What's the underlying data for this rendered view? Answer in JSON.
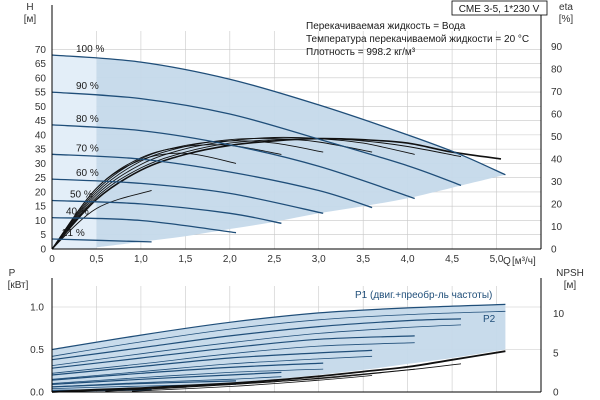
{
  "chart_data": [
    {
      "type": "line",
      "model": "CME 3-5, 1*230 V",
      "notes": [
        "Перекачиваемая жидкость = Вода",
        "Температура перекачиваемой жидкости = 20 °C",
        "Плотность = 998.2 кг/м³"
      ],
      "ylabel": "H",
      "yunit": "[м]",
      "y2label": "eta",
      "y2unit": "[%]",
      "xlabel": "Q",
      "xunit": "[м³/ч]",
      "xlim": [
        0,
        5.5
      ],
      "ylim": [
        0,
        75
      ],
      "y2lim": [
        0,
        95
      ],
      "xticks": [
        "0",
        "0,5",
        "1,0",
        "1,5",
        "2,0",
        "2,5",
        "3,0",
        "3,5",
        "4,0",
        "4,5",
        "5,0"
      ],
      "yticks": [
        "0",
        "5",
        "10",
        "15",
        "20",
        "25",
        "30",
        "35",
        "40",
        "45",
        "50",
        "55",
        "60",
        "65",
        "70"
      ],
      "y2ticks": [
        "0",
        "10",
        "20",
        "30",
        "40",
        "50",
        "60",
        "70",
        "80",
        "90"
      ],
      "colors": {
        "curve": "#1f4e79",
        "fill": "#c5d9ea",
        "fill_light": "#e3eef8",
        "eta": "#111111",
        "grid": "#c8c8c8"
      },
      "speed_curves": [
        {
          "label": "100 %",
          "x": [
            0,
            1,
            2,
            3,
            4,
            4.6,
            5.1
          ],
          "y": [
            68,
            65.5,
            59.5,
            50.5,
            40,
            33,
            26
          ]
        },
        {
          "label": "90 %",
          "x": [
            0,
            1,
            2,
            3,
            4,
            4.6
          ],
          "y": [
            55,
            52.7,
            47.3,
            38.5,
            29.2,
            22.3
          ]
        },
        {
          "label": "80 %",
          "x": [
            0,
            1,
            2,
            3,
            4.08
          ],
          "y": [
            43.5,
            41.5,
            36.5,
            29,
            17.7
          ]
        },
        {
          "label": "70 %",
          "x": [
            0,
            1,
            2,
            3,
            3.6
          ],
          "y": [
            33.2,
            31.5,
            27,
            20.5,
            14.5
          ]
        },
        {
          "label": "60 %",
          "x": [
            0,
            1,
            2,
            3.05
          ],
          "y": [
            24.5,
            23,
            19.5,
            12.5
          ]
        },
        {
          "label": "50 %",
          "x": [
            0,
            1,
            2,
            2.58
          ],
          "y": [
            17,
            15.8,
            12.5,
            9
          ]
        },
        {
          "label": "40 %",
          "x": [
            0,
            1,
            2.07
          ],
          "y": [
            11,
            10,
            5.7
          ]
        },
        {
          "label": "21 %",
          "x": [
            0,
            1.12
          ],
          "y": [
            3.5,
            2.5
          ]
        }
      ],
      "eta_curves": [
        {
          "x": [
            0,
            0.5,
            1,
            1.5,
            2,
            2.5,
            3,
            3.5,
            4,
            4.5,
            5.05
          ],
          "y": [
            0,
            22,
            35,
            42,
            46,
            48,
            49,
            48.5,
            47,
            43,
            40
          ]
        },
        {
          "x": [
            0,
            0.5,
            1,
            1.5,
            2,
            2.5,
            3,
            3.5,
            4,
            4.6
          ],
          "y": [
            0,
            23,
            36,
            43,
            47,
            48.5,
            49,
            48,
            45.5,
            41
          ]
        },
        {
          "x": [
            0,
            0.5,
            1,
            1.5,
            2,
            2.5,
            3,
            3.5,
            4.08
          ],
          "y": [
            0,
            24,
            37.5,
            44.5,
            48,
            49.5,
            49,
            47,
            42
          ]
        },
        {
          "x": [
            0,
            0.5,
            1,
            1.5,
            2,
            2.5,
            3,
            3.6
          ],
          "y": [
            0,
            25,
            39,
            45.5,
            48.5,
            49,
            47.5,
            43
          ]
        },
        {
          "x": [
            0,
            0.5,
            1,
            1.5,
            2,
            2.5,
            3.05
          ],
          "y": [
            0,
            26,
            40,
            46,
            48,
            47,
            43
          ]
        },
        {
          "x": [
            0,
            0.5,
            1,
            1.5,
            2,
            2.58
          ],
          "y": [
            0,
            27,
            40.5,
            45.5,
            46,
            42
          ]
        },
        {
          "x": [
            0,
            0.5,
            1,
            1.5,
            2.07
          ],
          "y": [
            0,
            27,
            39.5,
            42.5,
            38
          ]
        },
        {
          "x": [
            0,
            0.5,
            1.12
          ],
          "y": [
            0,
            18,
            26
          ]
        }
      ],
      "op_area": {
        "upper": {
          "x": [
            0.5,
            1,
            2,
            3,
            4,
            4.6,
            5.1
          ],
          "y": [
            66.7,
            65.5,
            59.5,
            50.5,
            40,
            33,
            26
          ]
        },
        "lower": {
          "x": [
            0.5,
            1,
            1.5,
            2,
            2.5,
            3,
            3.5,
            4,
            4.5,
            5.1
          ],
          "y": [
            0.6,
            2.5,
            4.5,
            7,
            9.5,
            12.5,
            15,
            17.8,
            21.5,
            26
          ]
        }
      },
      "zero_flow_band": {
        "x": [
          0,
          0.5
        ],
        "ytop": [
          68,
          66.7
        ]
      }
    },
    {
      "type": "line",
      "ylabel": "P",
      "yunit": "[кВт]",
      "y2label": "NPSH",
      "y2unit": "[м]",
      "xlim": [
        0,
        5.5
      ],
      "ylim": [
        0,
        1.2
      ],
      "y2lim": [
        0,
        13
      ],
      "yticks": [
        "0.0",
        "0.5",
        "1.0"
      ],
      "y2ticks": [
        "0",
        "5",
        "10"
      ],
      "series_labels": [
        "P1 (двиг.+преобр-ль частоты)",
        "P2"
      ],
      "p1_curves": [
        {
          "x": [
            0,
            1,
            2,
            3,
            4,
            5.1
          ],
          "y": [
            0.5,
            0.67,
            0.82,
            0.93,
            0.99,
            1.03
          ]
        },
        {
          "x": [
            0,
            1,
            2,
            3,
            4,
            4.6
          ],
          "y": [
            0.38,
            0.52,
            0.66,
            0.77,
            0.84,
            0.86
          ]
        },
        {
          "x": [
            0,
            1,
            2,
            3,
            4.08
          ],
          "y": [
            0.28,
            0.4,
            0.52,
            0.62,
            0.66
          ]
        },
        {
          "x": [
            0,
            1,
            2,
            3,
            3.6
          ],
          "y": [
            0.2,
            0.3,
            0.4,
            0.46,
            0.49
          ]
        },
        {
          "x": [
            0,
            1,
            2,
            3.05
          ],
          "y": [
            0.14,
            0.22,
            0.29,
            0.34
          ]
        },
        {
          "x": [
            0,
            1,
            2,
            2.58
          ],
          "y": [
            0.09,
            0.15,
            0.2,
            0.23
          ]
        },
        {
          "x": [
            0,
            1,
            2.07
          ],
          "y": [
            0.06,
            0.1,
            0.13
          ]
        },
        {
          "x": [
            0,
            1.12
          ],
          "y": [
            0.02,
            0.03
          ]
        }
      ],
      "p2_curves": [
        {
          "x": [
            0,
            1,
            2,
            3,
            4,
            5.1
          ],
          "y": [
            0.42,
            0.59,
            0.74,
            0.85,
            0.91,
            0.95
          ]
        },
        {
          "x": [
            0,
            1,
            2,
            3,
            4,
            4.6
          ],
          "y": [
            0.31,
            0.45,
            0.58,
            0.69,
            0.76,
            0.79
          ]
        },
        {
          "x": [
            0,
            1,
            2,
            3,
            4.08
          ],
          "y": [
            0.22,
            0.33,
            0.45,
            0.54,
            0.58
          ]
        },
        {
          "x": [
            0,
            1,
            2,
            3,
            3.6
          ],
          "y": [
            0.15,
            0.24,
            0.33,
            0.39,
            0.42
          ]
        },
        {
          "x": [
            0,
            1,
            2,
            3.05
          ],
          "y": [
            0.1,
            0.17,
            0.23,
            0.27
          ]
        },
        {
          "x": [
            0,
            1,
            2,
            2.58
          ],
          "y": [
            0.06,
            0.11,
            0.15,
            0.18
          ]
        },
        {
          "x": [
            0,
            1,
            2.07
          ],
          "y": [
            0.04,
            0.07,
            0.09
          ]
        },
        {
          "x": [
            0,
            1.12
          ],
          "y": [
            0.01,
            0.02
          ]
        }
      ],
      "npsh_curve": {
        "x": [
          0,
          0.5,
          1,
          1.5,
          2,
          2.5,
          3,
          3.5,
          4,
          4.5,
          5.1
        ],
        "y": [
          0,
          0.3,
          0.5,
          0.8,
          1.1,
          1.5,
          2,
          2.6,
          3.2,
          4.1,
          5.2
        ]
      },
      "npsh_fan": [
        {
          "x": [
            0.3,
            1,
            2,
            3,
            4,
            4.6
          ],
          "y": [
            0.1,
            0.4,
            1,
            1.7,
            2.8,
            3.6
          ]
        },
        {
          "x": [
            0.6,
            1.5,
            2.5,
            3.5,
            4.08
          ],
          "y": [
            0.1,
            0.6,
            1.3,
            2.3,
            2.9
          ]
        },
        {
          "x": [
            0.9,
            2,
            3,
            3.6
          ],
          "y": [
            0.1,
            0.7,
            1.5,
            2.1
          ]
        }
      ],
      "op_area": {
        "upper": {
          "x": [
            0,
            1,
            2,
            3,
            4,
            5.1
          ],
          "y": [
            0.5,
            0.67,
            0.82,
            0.93,
            0.99,
            1.03
          ]
        },
        "lower": {
          "x": [
            0,
            0.5,
            1,
            1.5,
            2,
            2.5,
            3,
            3.5,
            4,
            4.5,
            5.1
          ],
          "y": [
            0.02,
            0.03,
            0.05,
            0.08,
            0.11,
            0.15,
            0.2,
            0.26,
            0.33,
            0.4,
            0.5
          ]
        }
      }
    }
  ]
}
